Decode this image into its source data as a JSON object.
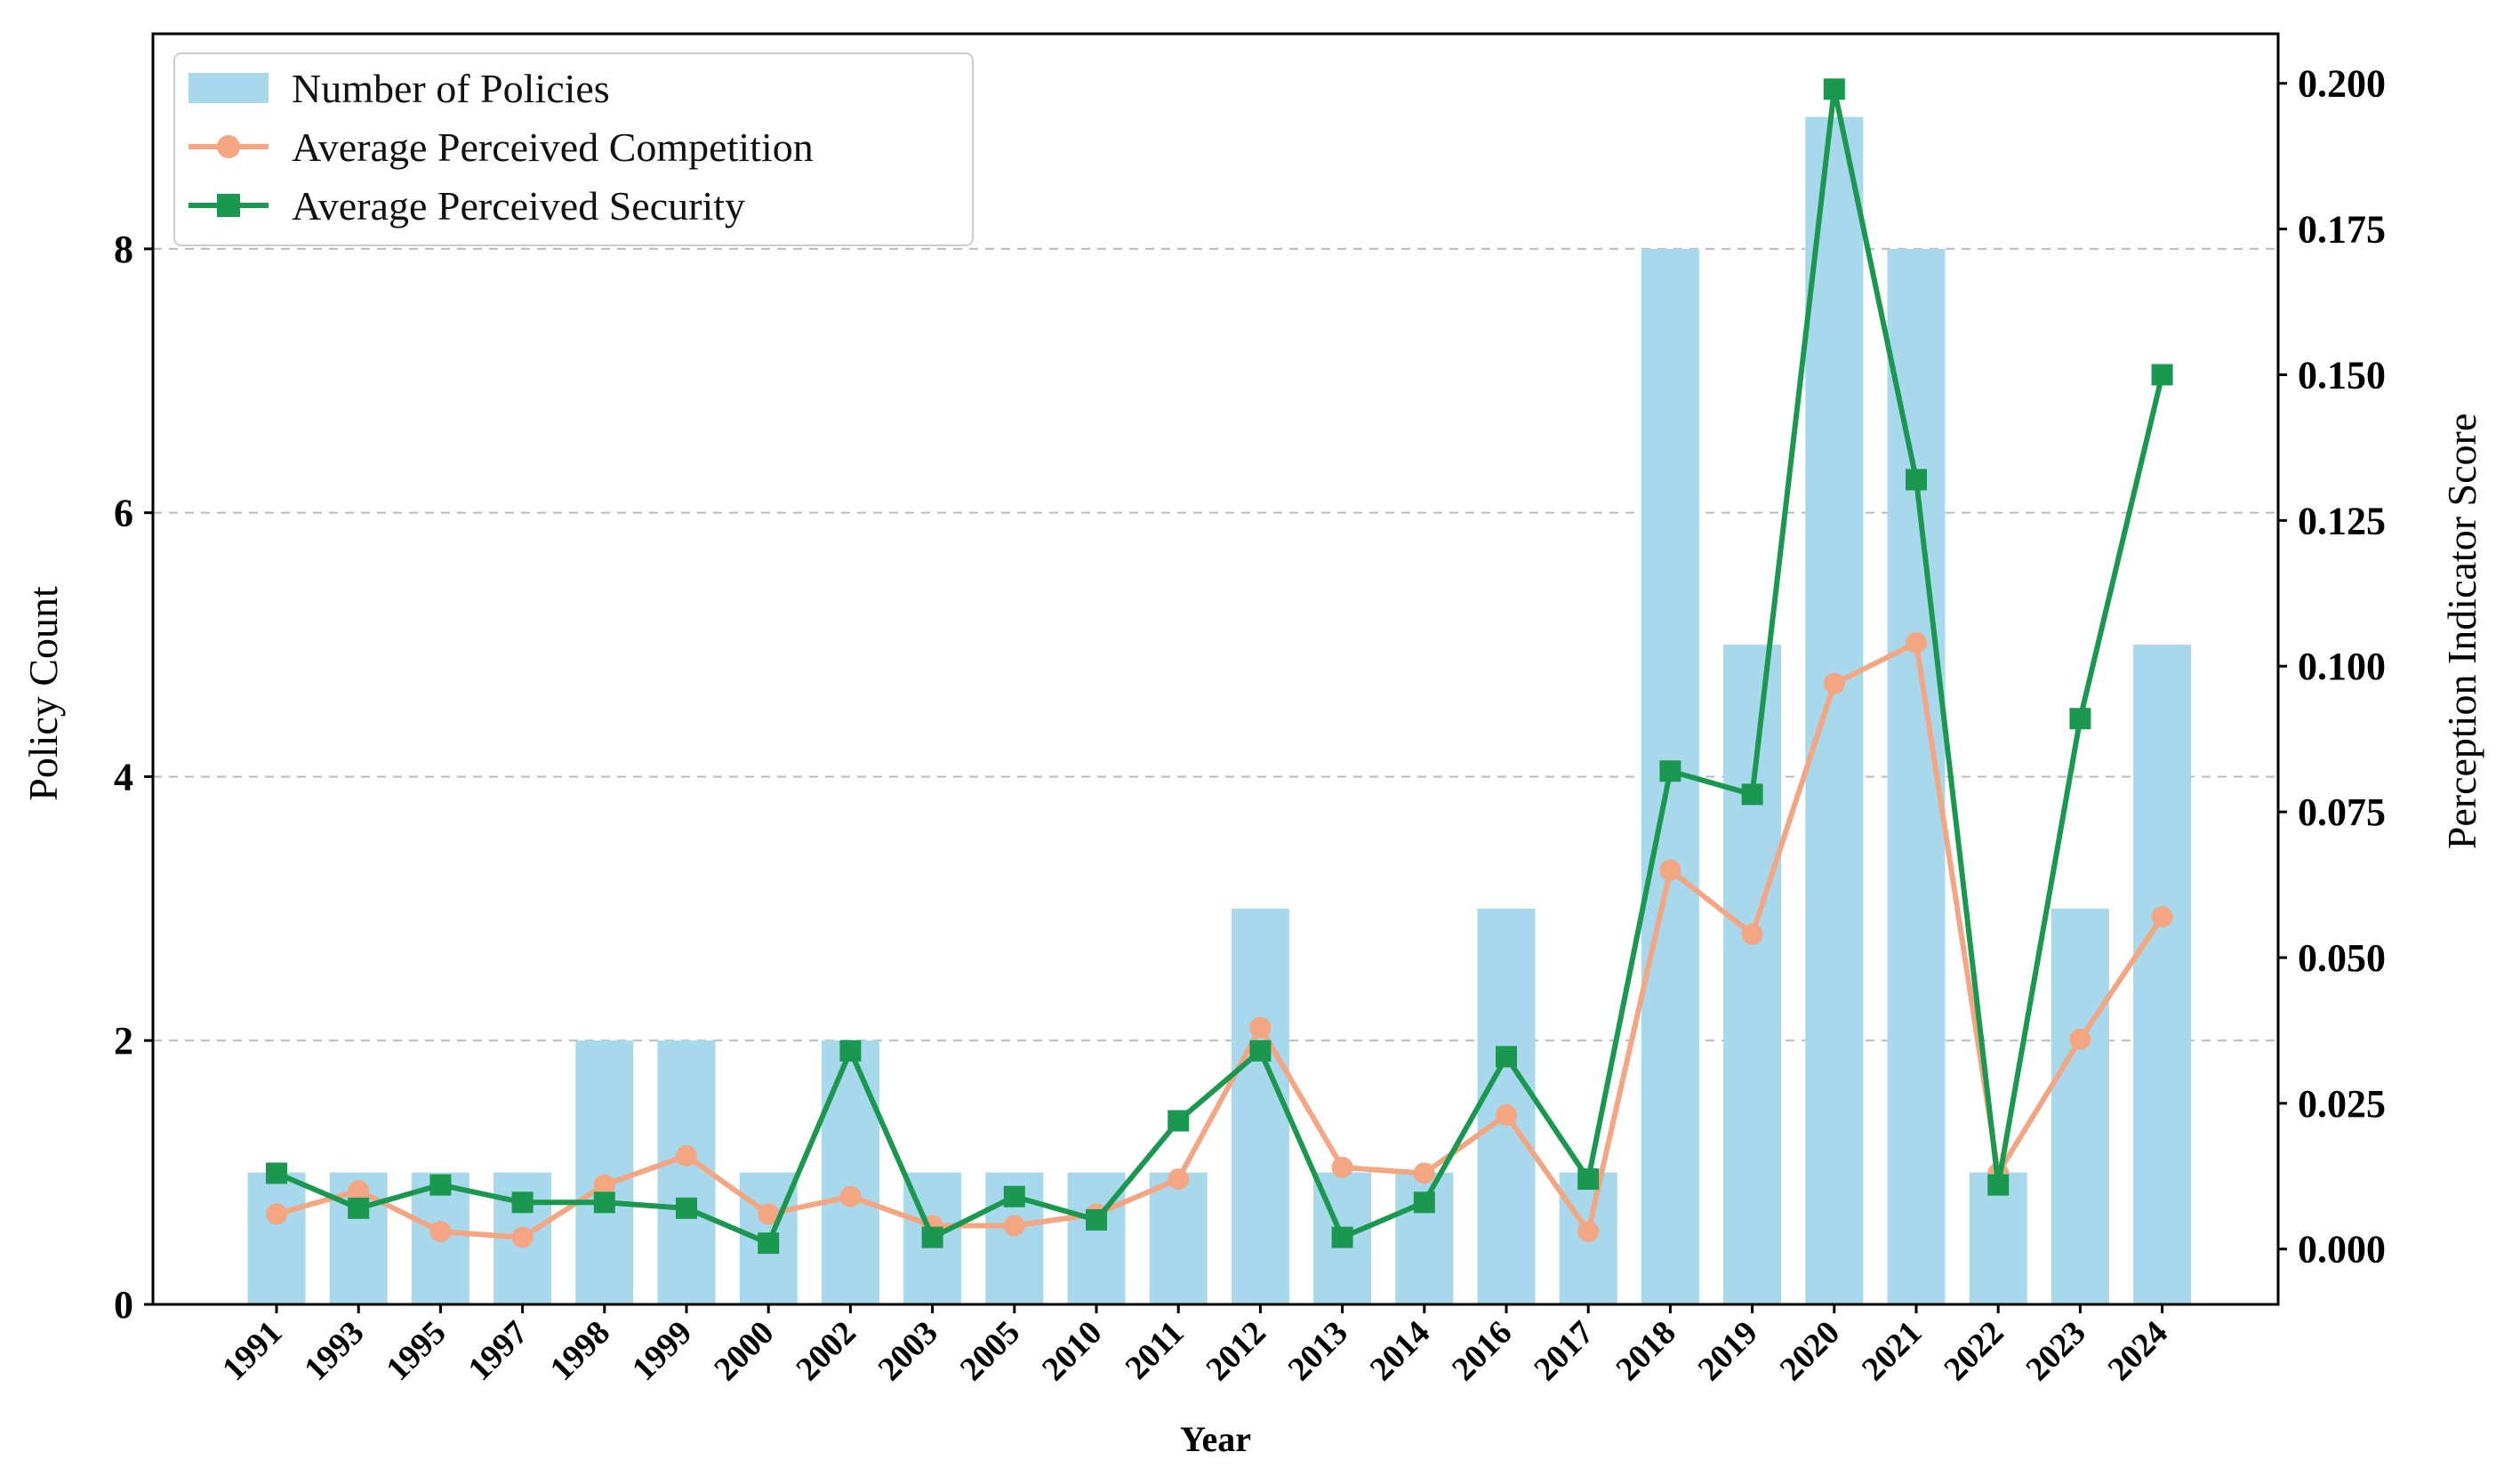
{
  "chart_data": {
    "type": "bar",
    "categories": [
      "1991",
      "1993",
      "1995",
      "1997",
      "1998",
      "1999",
      "2000",
      "2002",
      "2003",
      "2005",
      "2010",
      "2011",
      "2012",
      "2013",
      "2014",
      "2016",
      "2017",
      "2018",
      "2019",
      "2020",
      "2021",
      "2022",
      "2023",
      "2024"
    ],
    "series": [
      {
        "name": "Number of Policies",
        "type": "bar",
        "axis": "left",
        "color": "#a8d8ec",
        "values": [
          1,
          1,
          1,
          1,
          2,
          2,
          1,
          2,
          1,
          1,
          1,
          1,
          3,
          1,
          1,
          3,
          1,
          8,
          5,
          9,
          8,
          1,
          3,
          5
        ]
      },
      {
        "name": "Average Perceived Competition",
        "type": "line",
        "marker": "circle",
        "axis": "right",
        "color": "#f4a582",
        "values": [
          0.006,
          0.01,
          0.003,
          0.002,
          0.011,
          0.016,
          0.006,
          0.009,
          0.004,
          0.004,
          0.006,
          0.012,
          0.038,
          0.014,
          0.013,
          0.023,
          0.003,
          0.065,
          0.054,
          0.097,
          0.104,
          0.013,
          0.036,
          0.057
        ]
      },
      {
        "name": "Average Perceived Security",
        "type": "line",
        "marker": "square",
        "axis": "right",
        "color": "#1a9850",
        "values": [
          0.013,
          0.007,
          0.011,
          0.008,
          0.008,
          0.007,
          0.001,
          0.034,
          0.002,
          0.009,
          0.005,
          0.022,
          0.034,
          0.002,
          0.008,
          0.033,
          0.012,
          0.082,
          0.078,
          0.199,
          0.132,
          0.011,
          0.091,
          0.15
        ]
      }
    ],
    "xlabel": "Year",
    "ylabel_left": "Policy Count",
    "ylabel_right": "Perception Indicator Score",
    "ylim_left": [
      0,
      9.63
    ],
    "ylim_right": [
      -0.0095,
      0.2085
    ],
    "yticks_left": [
      "0",
      "2",
      "4",
      "6",
      "8"
    ],
    "yticks_right": [
      "0.000",
      "0.025",
      "0.050",
      "0.075",
      "0.100",
      "0.125",
      "0.150",
      "0.175",
      "0.200"
    ],
    "grid": "horizontal-dashed",
    "legend_position": "top-left"
  }
}
